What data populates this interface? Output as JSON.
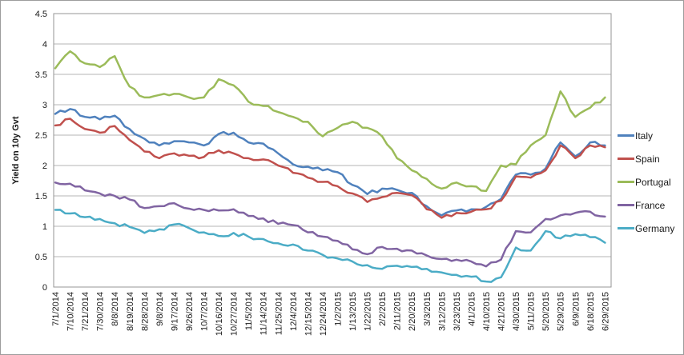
{
  "chart_data": {
    "type": "line",
    "title": "",
    "xlabel": "",
    "ylabel": "Yield on 10y Gvt",
    "ylim": [
      0,
      4.5
    ],
    "y_tick_step": 0.5,
    "y_ticks": [
      "0",
      "0.5",
      "1",
      "1.5",
      "2",
      "2.5",
      "3",
      "3.5",
      "4",
      "4.5"
    ],
    "grid": true,
    "legend_position": "right",
    "categories": [
      "7/1/2014",
      "7/10/2014",
      "7/21/2014",
      "7/30/2014",
      "8/8/2014",
      "8/19/2014",
      "8/28/2014",
      "9/8/2014",
      "9/17/2014",
      "9/26/2014",
      "10/7/2014",
      "10/16/2014",
      "10/27/2014",
      "11/5/2014",
      "11/14/2014",
      "11/25/2014",
      "12/4/2014",
      "12/15/2014",
      "12/24/2014",
      "1/2/2015",
      "1/13/2015",
      "1/22/2015",
      "2/2/2015",
      "2/11/2015",
      "2/20/2015",
      "3/3/2015",
      "3/12/2015",
      "3/23/2015",
      "4/1/2015",
      "4/10/2015",
      "4/21/2015",
      "4/30/2015",
      "5/11/2015",
      "5/20/2015",
      "5/29/2015",
      "6/9/2015",
      "6/18/2015",
      "6/29/2015"
    ],
    "series": [
      {
        "name": "Italy",
        "color": "#4F81BD",
        "values": [
          2.85,
          2.93,
          2.8,
          2.76,
          2.82,
          2.6,
          2.44,
          2.33,
          2.4,
          2.38,
          2.33,
          2.52,
          2.54,
          2.38,
          2.36,
          2.2,
          2.02,
          1.98,
          1.92,
          1.89,
          1.68,
          1.53,
          1.62,
          1.6,
          1.55,
          1.33,
          1.18,
          1.26,
          1.28,
          1.32,
          1.45,
          1.85,
          1.85,
          1.95,
          2.38,
          2.15,
          2.38,
          2.33
        ]
      },
      {
        "name": "Spain",
        "color": "#C0504D",
        "values": [
          2.66,
          2.77,
          2.6,
          2.54,
          2.65,
          2.42,
          2.23,
          2.12,
          2.2,
          2.16,
          2.14,
          2.25,
          2.2,
          2.12,
          2.1,
          2.0,
          1.88,
          1.8,
          1.73,
          1.66,
          1.54,
          1.4,
          1.48,
          1.55,
          1.51,
          1.28,
          1.14,
          1.22,
          1.24,
          1.28,
          1.42,
          1.82,
          1.8,
          1.92,
          2.33,
          2.12,
          2.33,
          2.3
        ]
      },
      {
        "name": "Portugal",
        "color": "#9BBB59",
        "values": [
          3.6,
          3.88,
          3.68,
          3.62,
          3.8,
          3.3,
          3.12,
          3.16,
          3.18,
          3.12,
          3.12,
          3.42,
          3.32,
          3.05,
          2.98,
          2.88,
          2.8,
          2.72,
          2.48,
          2.62,
          2.72,
          2.62,
          2.48,
          2.12,
          1.92,
          1.78,
          1.62,
          1.72,
          1.66,
          1.58,
          2.0,
          2.02,
          2.33,
          2.5,
          3.22,
          2.8,
          2.95,
          3.12
        ]
      },
      {
        "name": "France",
        "color": "#8064A2",
        "values": [
          1.72,
          1.7,
          1.59,
          1.54,
          1.5,
          1.44,
          1.3,
          1.33,
          1.38,
          1.29,
          1.27,
          1.26,
          1.28,
          1.17,
          1.13,
          1.04,
          1.02,
          0.9,
          0.83,
          0.76,
          0.62,
          0.54,
          0.66,
          0.63,
          0.6,
          0.52,
          0.46,
          0.45,
          0.42,
          0.34,
          0.45,
          0.92,
          0.9,
          1.12,
          1.18,
          1.22,
          1.24,
          1.16
        ]
      },
      {
        "name": "Germany",
        "color": "#4BACC6",
        "values": [
          1.27,
          1.21,
          1.15,
          1.12,
          1.05,
          0.99,
          0.89,
          0.95,
          1.03,
          0.97,
          0.9,
          0.84,
          0.89,
          0.83,
          0.79,
          0.72,
          0.7,
          0.6,
          0.53,
          0.47,
          0.42,
          0.36,
          0.3,
          0.35,
          0.33,
          0.3,
          0.24,
          0.2,
          0.17,
          0.09,
          0.16,
          0.65,
          0.6,
          0.92,
          0.8,
          0.87,
          0.82,
          0.73
        ]
      }
    ]
  }
}
